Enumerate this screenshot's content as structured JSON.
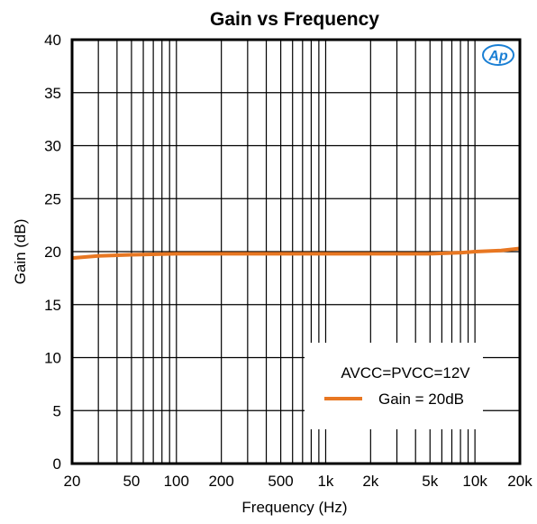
{
  "chart_data": {
    "type": "line",
    "title": "Gain vs Frequency",
    "xlabel": "Frequency (Hz)",
    "ylabel": "Gain (dB)",
    "xscale": "log",
    "xlim": [
      20,
      20000
    ],
    "ylim": [
      0,
      40
    ],
    "grid": "log-x vertical gridlines, horizontal every 5 dB",
    "x_ticks": [
      {
        "value": 20,
        "label": "20"
      },
      {
        "value": 50,
        "label": "50"
      },
      {
        "value": 100,
        "label": "100"
      },
      {
        "value": 200,
        "label": "200"
      },
      {
        "value": 500,
        "label": "500"
      },
      {
        "value": 1000,
        "label": "1k"
      },
      {
        "value": 2000,
        "label": "2k"
      },
      {
        "value": 5000,
        "label": "5k"
      },
      {
        "value": 10000,
        "label": "10k"
      },
      {
        "value": 20000,
        "label": "20k"
      }
    ],
    "y_ticks": [
      {
        "value": 0,
        "label": "0"
      },
      {
        "value": 5,
        "label": "5"
      },
      {
        "value": 10,
        "label": "10"
      },
      {
        "value": 15,
        "label": "15"
      },
      {
        "value": 20,
        "label": "20"
      },
      {
        "value": 25,
        "label": "25"
      },
      {
        "value": 30,
        "label": "30"
      },
      {
        "value": 35,
        "label": "35"
      },
      {
        "value": 40,
        "label": "40"
      }
    ],
    "legend": {
      "placement": "bottom-right",
      "heading": "AVCC=PVCC=12V"
    },
    "series": [
      {
        "name": "Gain = 20dB",
        "color": "#E87722",
        "x": [
          20,
          30,
          50,
          100,
          200,
          500,
          1000,
          2000,
          5000,
          8000,
          10000,
          15000,
          20000
        ],
        "y": [
          19.4,
          19.6,
          19.7,
          19.8,
          19.8,
          19.8,
          19.8,
          19.8,
          19.8,
          19.9,
          20.0,
          20.1,
          20.3
        ]
      }
    ]
  },
  "logo": {
    "text": "Ap",
    "color": "#1a7fd4"
  }
}
